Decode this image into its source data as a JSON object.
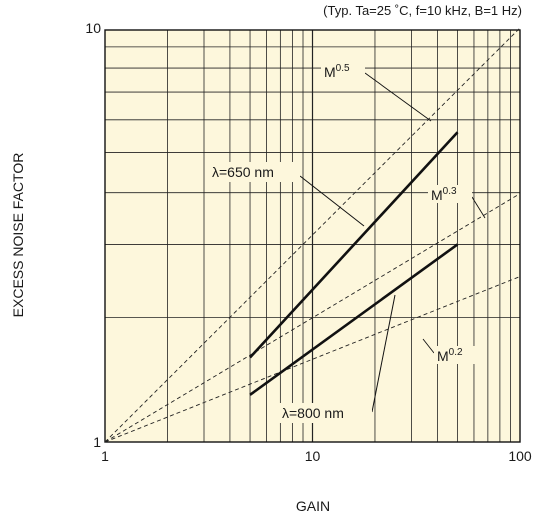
{
  "chart_data": {
    "type": "line",
    "title": "",
    "conditions": "(Typ. Ta=25 ˚C, f=10 kHz, B=1 Hz)",
    "xlabel": "GAIN",
    "ylabel": "EXCESS NOISE FACTOR",
    "xscale": "log",
    "yscale": "log",
    "xlim": [
      1,
      100
    ],
    "ylim": [
      1,
      10
    ],
    "x_ticks": [
      "1",
      "10",
      "100"
    ],
    "y_ticks": [
      "1",
      "10"
    ],
    "grid": true,
    "legend": "none",
    "series": [
      {
        "name": "λ=650 nm",
        "x": [
          5,
          50
        ],
        "y": [
          1.6,
          5.6
        ],
        "style": "solid"
      },
      {
        "name": "λ=800 nm",
        "x": [
          5,
          50
        ],
        "y": [
          1.3,
          3.0
        ],
        "style": "solid"
      }
    ],
    "reference_lines": [
      {
        "base": "M",
        "exp": "0.5",
        "x": [
          1,
          100
        ],
        "y": [
          1,
          10
        ],
        "style": "dashed"
      },
      {
        "base": "M",
        "exp": "0.3",
        "x": [
          1,
          100
        ],
        "y": [
          1,
          3.98
        ],
        "style": "dashed"
      },
      {
        "base": "M",
        "exp": "0.2",
        "x": [
          1,
          100
        ],
        "y": [
          1,
          2.51
        ],
        "style": "dashed"
      }
    ],
    "annotations": [
      {
        "text": "λ=650 nm"
      },
      {
        "text": "λ=800 nm"
      }
    ]
  }
}
